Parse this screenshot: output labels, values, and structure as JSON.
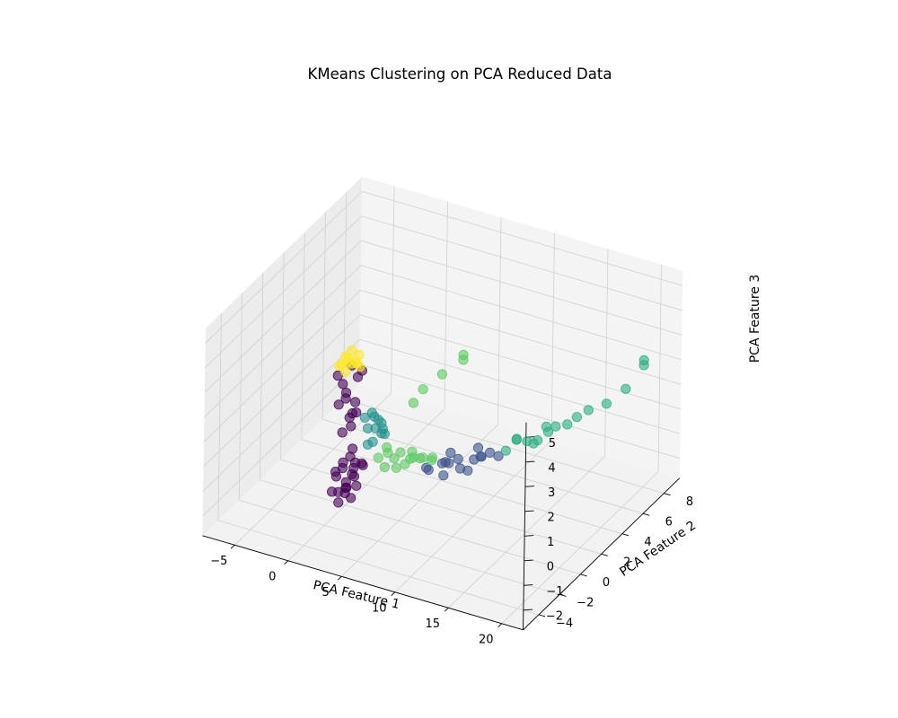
{
  "chart_data": {
    "type": "scatter",
    "projection": "3d",
    "title": "KMeans Clustering on PCA Reduced Data",
    "xlabel": "PCA Feature 1",
    "ylabel": "PCA Feature 2",
    "zlabel": "PCA Feature 3",
    "xticks": [
      "−5",
      "0",
      "5",
      "10",
      "15",
      "20"
    ],
    "yticks": [
      "−4",
      "−2",
      "0",
      "2",
      "4",
      "6",
      "8"
    ],
    "zticks": [
      "−2",
      "−1",
      "0",
      "1",
      "2",
      "3",
      "4",
      "5"
    ],
    "grid": true,
    "colormap": "viridis",
    "marker_alpha": 0.6,
    "clusters": [
      {
        "color": "#440154",
        "points": [
          [
            0,
            0,
            -2.1
          ],
          [
            0.3,
            0.5,
            -1.8
          ],
          [
            -0.4,
            -0.3,
            -2.2
          ],
          [
            0.5,
            -0.5,
            -1.6
          ],
          [
            -0.2,
            0.8,
            -1.9
          ],
          [
            0.8,
            0.2,
            -2.0
          ],
          [
            -0.6,
            0.3,
            -1.5
          ],
          [
            0.2,
            -0.9,
            -2.3
          ],
          [
            0.6,
            0.9,
            -1.4
          ],
          [
            -0.3,
            -0.7,
            -1.2
          ],
          [
            0.9,
            -0.2,
            -1.1
          ],
          [
            0,
            0.4,
            -1.0
          ],
          [
            -0.5,
            0.6,
            -2.4
          ],
          [
            0.4,
            0.1,
            -2.5
          ],
          [
            -0.8,
            -0.1,
            -1.7
          ],
          [
            1.0,
            0.6,
            -1.3
          ],
          [
            0.1,
            -0.4,
            -0.9
          ],
          [
            -0.1,
            1.0,
            -1.5
          ],
          [
            0.7,
            -0.8,
            -1.9
          ],
          [
            -0.7,
            -0.6,
            -2.1
          ],
          [
            0.3,
            0.3,
            -0.6
          ],
          [
            -0.2,
            -0.2,
            0.2
          ],
          [
            0.4,
            0.5,
            0.8
          ],
          [
            -0.3,
            0.2,
            1.4
          ],
          [
            0.2,
            -0.3,
            1.9
          ],
          [
            0.6,
            0.4,
            2.3
          ],
          [
            -0.5,
            0.1,
            2.0
          ],
          [
            0.1,
            0.7,
            1.1
          ],
          [
            0.5,
            -0.1,
            0.5
          ],
          [
            -0.4,
            -0.5,
            2.6
          ],
          [
            0.8,
            0.6,
            2.5
          ],
          [
            0,
            -0.8,
            1.6
          ],
          [
            -0.6,
            0.9,
            0.3
          ],
          [
            0.9,
            -0.4,
            1.2
          ],
          [
            0.2,
            0.2,
            2.8
          ]
        ]
      },
      {
        "color": "#3b528b",
        "points": [
          [
            7,
            0.5,
            -0.6
          ],
          [
            8,
            1,
            -0.5
          ],
          [
            9,
            1.5,
            -0.4
          ],
          [
            10,
            2,
            -0.5
          ],
          [
            8.5,
            0.8,
            -0.3
          ],
          [
            9.5,
            1.2,
            -0.6
          ],
          [
            10.5,
            2.2,
            -0.4
          ],
          [
            7.5,
            0.2,
            -0.5
          ],
          [
            11,
            2.5,
            -0.3
          ],
          [
            9,
            0.6,
            -0.2
          ],
          [
            10,
            1.4,
            -0.7
          ],
          [
            8,
            1.8,
            -0.4
          ],
          [
            11.5,
            2.8,
            -0.5
          ],
          [
            9.8,
            2.6,
            -0.3
          ],
          [
            8.8,
            0.3,
            -0.6
          ],
          [
            10.8,
            1.8,
            -0.2
          ]
        ]
      },
      {
        "color": "#21918c",
        "points": [
          [
            1.5,
            0.5,
            0.3
          ],
          [
            2,
            1,
            0.5
          ],
          [
            1.8,
            0.2,
            -0.2
          ],
          [
            2.5,
            0.8,
            0.1
          ],
          [
            1.2,
            1.2,
            0.6
          ],
          [
            2.2,
            0.4,
            0.9
          ],
          [
            1.6,
            0.9,
            -0.4
          ],
          [
            2.8,
            0.6,
            0.4
          ],
          [
            1.9,
            1.4,
            0.2
          ],
          [
            2.4,
            1.2,
            -0.1
          ],
          [
            1.4,
            0.3,
            0.8
          ],
          [
            2.6,
            0.1,
            0.6
          ]
        ]
      },
      {
        "color": "#27ad81",
        "points": [
          [
            12,
            3,
            -0.3
          ],
          [
            13,
            4,
            -0.2
          ],
          [
            14,
            5,
            -0.1
          ],
          [
            12.5,
            3.5,
            0
          ],
          [
            13.5,
            4.5,
            -0.3
          ],
          [
            14.5,
            5.2,
            0.1
          ],
          [
            15,
            5.8,
            0
          ],
          [
            15.5,
            6.2,
            0.2
          ],
          [
            16,
            6.8,
            0.3
          ],
          [
            17,
            7.5,
            0.4
          ],
          [
            18,
            8.3,
            0.8
          ],
          [
            19,
            9,
            1.6
          ],
          [
            19,
            9,
            1.8
          ],
          [
            12.8,
            3.2,
            0.2
          ],
          [
            13.8,
            3.8,
            -0.1
          ],
          [
            14.2,
            4.6,
            0.3
          ]
        ]
      },
      {
        "color": "#5ec962",
        "points": [
          [
            3,
            0,
            -0.5
          ],
          [
            4,
            0.5,
            -0.6
          ],
          [
            5,
            1,
            -0.7
          ],
          [
            6,
            1.2,
            -0.6
          ],
          [
            3.5,
            0.4,
            -0.4
          ],
          [
            4.5,
            0.2,
            -0.8
          ],
          [
            5.5,
            0.8,
            -0.5
          ],
          [
            6.5,
            1.6,
            -0.7
          ],
          [
            3.2,
            0.6,
            -0.3
          ],
          [
            4.2,
            0.9,
            -0.5
          ],
          [
            5.2,
            0.3,
            -0.6
          ],
          [
            6.2,
            0.7,
            -0.4
          ],
          [
            7,
            1,
            -0.5
          ],
          [
            4.8,
            1.4,
            -0.6
          ],
          [
            3.8,
            -0.2,
            -0.7
          ],
          [
            6,
            5,
            2.0
          ],
          [
            6,
            5,
            1.8
          ],
          [
            5,
            4,
            1.5
          ],
          [
            4.2,
            3,
            1.2
          ],
          [
            3.8,
            2.5,
            0.8
          ]
        ]
      },
      {
        "color": "#fde725",
        "points": [
          [
            0,
            0,
            3.0
          ],
          [
            0.4,
            0.4,
            2.9
          ],
          [
            -0.4,
            0.2,
            3.1
          ],
          [
            0.2,
            -0.4,
            2.8
          ],
          [
            -0.2,
            0.6,
            3.2
          ],
          [
            0.6,
            -0.2,
            3.1
          ],
          [
            -0.5,
            -0.3,
            2.9
          ],
          [
            0.3,
            0.8,
            3.0
          ],
          [
            0.7,
            0.5,
            2.7
          ],
          [
            -0.6,
            0.7,
            2.8
          ],
          [
            0.1,
            -0.7,
            3.2
          ],
          [
            0.8,
            0.1,
            3.0
          ]
        ]
      }
    ]
  }
}
